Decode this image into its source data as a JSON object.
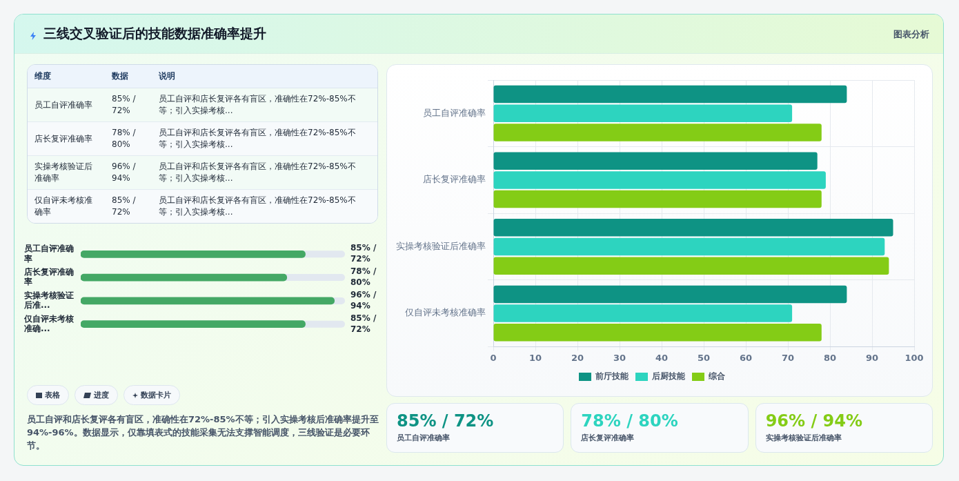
{
  "chart_data": [
    {
      "type": "other",
      "title": "三线交叉验证后的技能数据准确率提升",
      "annotations": [
        "图表分析"
      ],
      "categories": [
        "维度",
        "数据",
        "说明"
      ],
      "y_categories": [
        "员工自评准确率",
        "店长复评准确率",
        "实操考核验证后准确率",
        "仅自评未考核准确率"
      ],
      "cell_labels": [
        [
          "85% / 72%",
          "员工自评和店长复评各有盲区，准确性在72%-85%不等；引入实操考核..."
        ],
        [
          "78% / 80%",
          "员工自评和店长复评各有盲区，准确性在72%-85%不等；引入实操考核..."
        ],
        [
          "96% / 94%",
          "员工自评和店长复评各有盲区，准确性在72%-85%不等；引入实操考核..."
        ],
        [
          "85% / 72%",
          "员工自评和店长复评各有盲区，准确性在72%-85%不等；引入实操考核..."
        ]
      ]
    },
    {
      "type": "bar",
      "orientation": "horizontal",
      "categories": [
        "员工自评准确率",
        "店长复评准确率",
        "实操考核验证后准...",
        "仅自评未考核准确..."
      ],
      "values": [
        85,
        78,
        96,
        85
      ],
      "color": "#44a865",
      "value_labels": [
        "85% / 72%",
        "78% / 80%",
        "96% / 94%",
        "85% / 72%"
      ],
      "annotations": [
        "表格",
        "进度",
        "数据卡片",
        "员工自评和店长复评各有盲区，准确性在72%-85%不等；引入实操考核后准确率提升至94%-96%。数据显示，仅靠填表式的技能采集无法支撑智能调度，三线验证是必要环节。"
      ]
    },
    {
      "type": "bar",
      "orientation": "horizontal",
      "categories": [
        "员工自评准确率",
        "店长复评准确率",
        "实操考核验证后准确率",
        "仅自评未考核准确率"
      ],
      "series": [
        {
          "name": "前厅技能",
          "color": "#0e9384",
          "values": [
            84,
            77,
            95,
            84
          ]
        },
        {
          "name": "后厨技能",
          "color": "#2dd4bf",
          "values": [
            71,
            79,
            93,
            71
          ]
        },
        {
          "name": "综合",
          "color": "#84cc16",
          "values": [
            78,
            78,
            94,
            78
          ]
        }
      ],
      "xlim": [
        0,
        100
      ],
      "xticks": [
        0,
        10,
        20,
        30,
        40,
        50,
        60,
        70,
        80,
        90,
        100
      ],
      "grid": true,
      "legend": "bottom"
    },
    {
      "type": "other",
      "categories": [
        "85% / 72%",
        "78% / 80%",
        "96% / 94%"
      ],
      "annotations": [
        "员工自评准确率",
        "店长复评准确率",
        "实操考核验证后准确率"
      ]
    }
  ]
}
